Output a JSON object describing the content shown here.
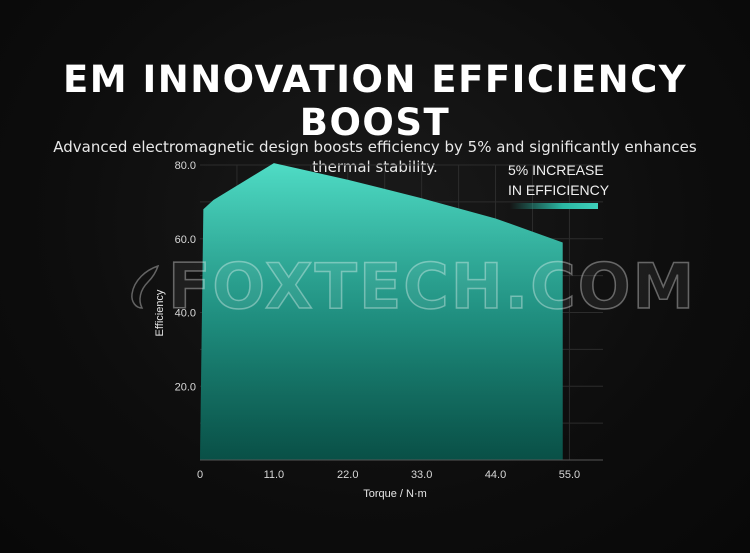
{
  "title": "EM INNOVATION EFFICIENCY BOOST",
  "subtitle": "Advanced electromagnetic design boosts efficiency by 5% and significantly enhances thermal stability.",
  "legend": {
    "line1": "5% INCREASE",
    "line2": "IN EFFICIENCY"
  },
  "watermark": "FOXTECH.COM",
  "colors": {
    "background": "#0d0d0d",
    "area_top": "#49d6c0",
    "area_bottom": "#0f7466",
    "grid": "#2a2a2a"
  },
  "chart_data": {
    "type": "area",
    "xlabel": "Torque / N·m",
    "ylabel": "Efficiency",
    "x_ticks": [
      "0",
      "11.0",
      "22.0",
      "33.0",
      "44.0",
      "55.0"
    ],
    "y_ticks": [
      "20.0",
      "40.0",
      "60.0",
      "80.0"
    ],
    "xlim": [
      0,
      60
    ],
    "ylim": [
      0,
      80
    ],
    "grid": true,
    "series": [
      {
        "x": [
          0,
          0.5,
          2,
          11,
          22,
          33,
          44,
          54,
          54
        ],
        "y": [
          0,
          68,
          70.5,
          80.5,
          76,
          71,
          65.5,
          59,
          0
        ]
      }
    ]
  }
}
